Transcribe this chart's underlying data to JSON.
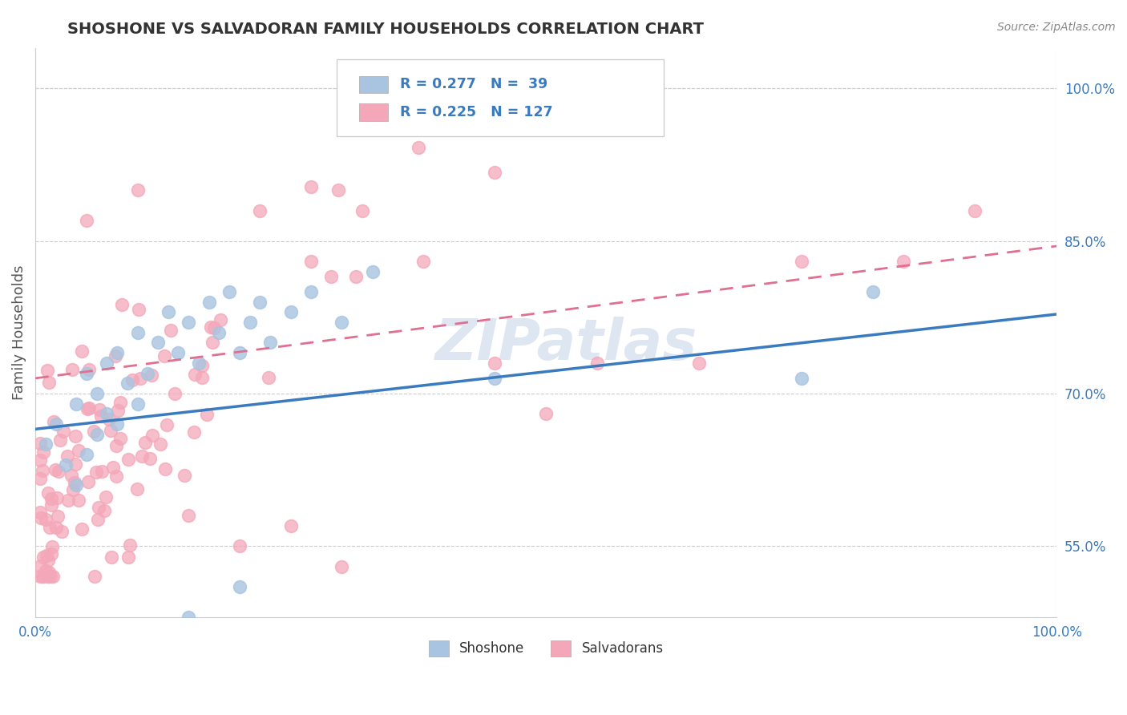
{
  "title": "SHOSHONE VS SALVADORAN FAMILY HOUSEHOLDS CORRELATION CHART",
  "source": "Source: ZipAtlas.com",
  "ylabel": "Family Households",
  "xlim": [
    0.0,
    1.0
  ],
  "ylim": [
    0.48,
    1.04
  ],
  "shoshone_color": "#a8c4e0",
  "salvadoran_color": "#f4a7b9",
  "shoshone_line_color": "#3a7bbf",
  "salvadoran_line_color": "#e07090",
  "shoshone_R": 0.277,
  "shoshone_N": 39,
  "salvadoran_R": 0.225,
  "salvadoran_N": 127,
  "watermark": "ZIPatlas",
  "background_color": "#ffffff",
  "grid_color": "#cccccc",
  "shoshone_line_y0": 0.665,
  "shoshone_line_y1": 0.778,
  "salvadoran_line_y0": 0.715,
  "salvadoran_line_y1": 0.845,
  "ytick_vals": [
    0.55,
    0.6,
    0.65,
    0.7,
    0.75,
    0.8,
    0.85,
    0.9,
    0.95,
    1.0
  ],
  "ytick_labels": [
    "55.0%",
    "",
    "",
    "70.0%",
    "",
    "",
    "85.0%",
    "",
    "",
    "100.0%"
  ]
}
